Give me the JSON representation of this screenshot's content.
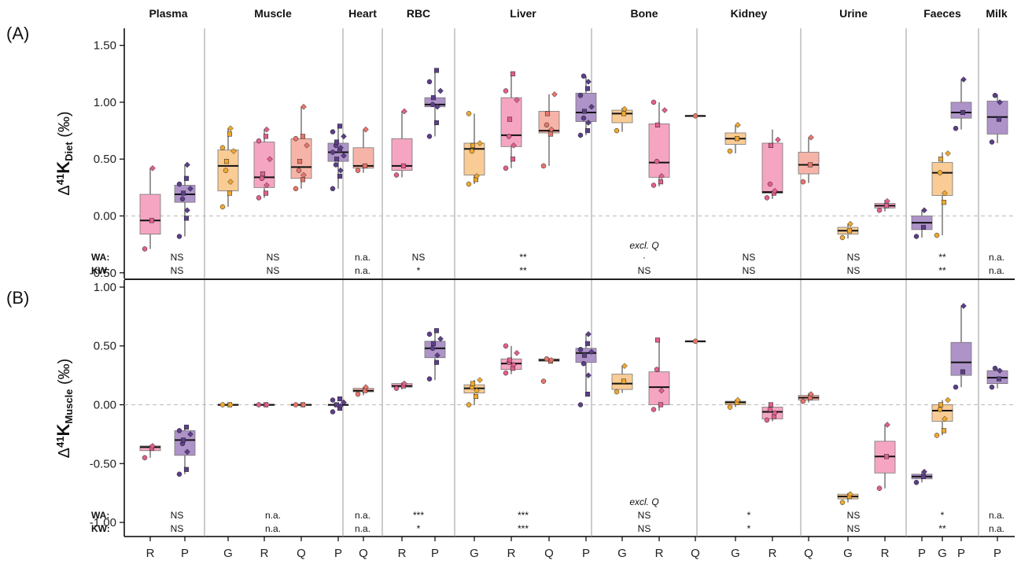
{
  "colors": {
    "G": "#f9cc95",
    "R": "#f5a5c2",
    "Q": "#f6b4a8",
    "P": "#ae93c8",
    "G_pt": "#f0a830",
    "R_pt": "#e0608e",
    "Q_pt": "#e8766a",
    "P_pt": "#5c3f8a"
  },
  "tissues": [
    "Plasma",
    "Muscle",
    "Heart",
    "RBC",
    "Liver",
    "Bone",
    "Kidney",
    "Urine",
    "Faeces",
    "Milk"
  ],
  "x_labels": [
    "R",
    "P",
    "G",
    "R",
    "Q",
    "P",
    "Q",
    "R",
    "P",
    "G",
    "R",
    "Q",
    "P",
    "G",
    "R",
    "Q",
    "G",
    "R",
    "Q",
    "G",
    "R",
    "P",
    "G",
    "P",
    "P"
  ],
  "panels": [
    {
      "label": "(A)",
      "ylabel_prefix": "Δ",
      "ylabel_sup": "41",
      "ylabel_main": "K",
      "ylabel_sub": "Diet",
      "ylabel_unit": " (‰)",
      "ytick_labels": [
        "1.50",
        "1.00",
        "0.50",
        "0.00",
        "-0.50"
      ],
      "stat_keys": [
        "WA:",
        "KW:"
      ],
      "wa": [
        "NS",
        "NS",
        "n.a.",
        "NS",
        "**",
        "·",
        "NS",
        "NS",
        "**",
        "n.a."
      ],
      "kw": [
        "NS",
        "NS",
        "n.a.",
        "*",
        "**",
        "NS",
        "NS",
        "NS",
        "**",
        "n.a."
      ],
      "note": "excl. Q"
    },
    {
      "label": "(B)",
      "ylabel_prefix": "Δ",
      "ylabel_sup": "41",
      "ylabel_main": "K",
      "ylabel_sub": "Muscle",
      "ylabel_unit": " (‰)",
      "ytick_labels": [
        "1.00",
        "0.50",
        "0.00",
        "-0.50",
        "-1.00"
      ],
      "stat_keys": [
        "WA:",
        "KW:"
      ],
      "wa": [
        "NS",
        "n.a.",
        "n.a.",
        "***",
        "***",
        "NS",
        "*",
        "NS",
        "*",
        "n.a."
      ],
      "kw": [
        "NS",
        "n.a.",
        "n.a.",
        "*",
        "***",
        "NS",
        "*",
        "NS",
        "**",
        "n.a."
      ],
      "note": "excl. Q"
    }
  ],
  "chart_data": [
    {
      "type": "box",
      "title": "(A)",
      "ylabel": "Δ41K Diet (‰)",
      "ylim": [
        -0.55,
        1.65
      ],
      "groups": [
        {
          "tissue": "Plasma",
          "diet": "R",
          "q1": -0.16,
          "median": -0.04,
          "q3": 0.19,
          "wlo": -0.29,
          "whi": 0.42,
          "points": [
            -0.29,
            -0.04,
            0.42
          ]
        },
        {
          "tissue": "Plasma",
          "diet": "P",
          "q1": 0.12,
          "median": 0.19,
          "q3": 0.27,
          "wlo": -0.18,
          "whi": 0.45,
          "points": [
            -0.18,
            -0.02,
            0.05,
            0.15,
            0.2,
            0.24,
            0.28,
            0.33,
            0.45
          ]
        },
        {
          "tissue": "Muscle",
          "diet": "G",
          "q1": 0.22,
          "median": 0.44,
          "q3": 0.58,
          "wlo": 0.08,
          "whi": 0.77,
          "points": [
            0.08,
            0.2,
            0.3,
            0.4,
            0.48,
            0.57,
            0.6,
            0.72,
            0.77
          ]
        },
        {
          "tissue": "Muscle",
          "diet": "R",
          "q1": 0.25,
          "median": 0.34,
          "q3": 0.65,
          "wlo": 0.16,
          "whi": 0.76,
          "points": [
            0.16,
            0.2,
            0.27,
            0.33,
            0.37,
            0.5,
            0.66,
            0.7,
            0.76
          ]
        },
        {
          "tissue": "Muscle",
          "diet": "Q",
          "q1": 0.33,
          "median": 0.43,
          "q3": 0.68,
          "wlo": 0.24,
          "whi": 0.96,
          "points": [
            0.24,
            0.32,
            0.36,
            0.4,
            0.48,
            0.62,
            0.68,
            0.7,
            0.96
          ]
        },
        {
          "tissue": "Muscle",
          "diet": "P",
          "q1": 0.48,
          "median": 0.56,
          "q3": 0.64,
          "wlo": 0.24,
          "whi": 0.79,
          "points": [
            0.24,
            0.35,
            0.4,
            0.45,
            0.5,
            0.53,
            0.56,
            0.58,
            0.6,
            0.62,
            0.65,
            0.7,
            0.74,
            0.79
          ]
        },
        {
          "tissue": "Heart",
          "diet": "Q",
          "q1": 0.42,
          "median": 0.44,
          "q3": 0.6,
          "wlo": 0.38,
          "whi": 0.76,
          "points": [
            0.4,
            0.44,
            0.76
          ]
        },
        {
          "tissue": "RBC",
          "diet": "R",
          "q1": 0.4,
          "median": 0.44,
          "q3": 0.68,
          "wlo": 0.34,
          "whi": 0.92,
          "points": [
            0.36,
            0.44,
            0.92
          ]
        },
        {
          "tissue": "RBC",
          "diet": "P",
          "q1": 0.96,
          "median": 0.98,
          "q3": 1.04,
          "wlo": 0.7,
          "whi": 1.28,
          "points": [
            0.7,
            0.82,
            0.96,
            0.98,
            1.04,
            1.1,
            1.18,
            1.28
          ]
        },
        {
          "tissue": "Liver",
          "diet": "G",
          "q1": 0.36,
          "median": 0.59,
          "q3": 0.64,
          "wlo": 0.28,
          "whi": 0.9,
          "points": [
            0.28,
            0.32,
            0.35,
            0.57,
            0.62,
            0.64,
            0.9
          ]
        },
        {
          "tissue": "Liver",
          "diet": "R",
          "q1": 0.61,
          "median": 0.71,
          "q3": 1.04,
          "wlo": 0.42,
          "whi": 1.25,
          "points": [
            0.42,
            0.5,
            0.62,
            0.7,
            0.85,
            1.02,
            1.1,
            1.25
          ]
        },
        {
          "tissue": "Liver",
          "diet": "Q",
          "q1": 0.73,
          "median": 0.75,
          "q3": 0.92,
          "wlo": 0.44,
          "whi": 1.07,
          "points": [
            0.44,
            0.72,
            0.76,
            0.8,
            0.9,
            1.07
          ]
        },
        {
          "tissue": "Liver",
          "diet": "P",
          "q1": 0.83,
          "median": 0.91,
          "q3": 1.08,
          "wlo": 0.71,
          "whi": 1.23,
          "points": [
            0.71,
            0.75,
            0.82,
            0.86,
            0.92,
            0.96,
            1.06,
            1.12,
            1.18,
            1.23
          ]
        },
        {
          "tissue": "Bone",
          "diet": "G",
          "q1": 0.82,
          "median": 0.9,
          "q3": 0.93,
          "wlo": 0.74,
          "whi": 0.95,
          "points": [
            0.75,
            0.9,
            0.94
          ]
        },
        {
          "tissue": "Bone",
          "diet": "R",
          "q1": 0.34,
          "median": 0.47,
          "q3": 0.81,
          "wlo": 0.26,
          "whi": 1.0,
          "points": [
            0.27,
            0.3,
            0.35,
            0.48,
            0.8,
            0.93,
            1.0
          ]
        },
        {
          "tissue": "Bone",
          "diet": "Q",
          "q1": 0.88,
          "median": 0.88,
          "q3": 0.88,
          "wlo": 0.88,
          "whi": 0.88,
          "points": [
            0.88
          ]
        },
        {
          "tissue": "Kidney",
          "diet": "G",
          "q1": 0.63,
          "median": 0.68,
          "q3": 0.73,
          "wlo": 0.55,
          "whi": 0.8,
          "points": [
            0.57,
            0.68,
            0.8
          ]
        },
        {
          "tissue": "Kidney",
          "diet": "R",
          "q1": 0.2,
          "median": 0.21,
          "q3": 0.64,
          "wlo": 0.15,
          "whi": 0.76,
          "points": [
            0.16,
            0.2,
            0.22,
            0.28,
            0.62,
            0.67
          ]
        },
        {
          "tissue": "Kidney",
          "diet": "Q",
          "q1": 0.37,
          "median": 0.45,
          "q3": 0.56,
          "wlo": 0.29,
          "whi": 0.69,
          "points": [
            0.3,
            0.45,
            0.69
          ]
        },
        {
          "tissue": "Urine",
          "diet": "G",
          "q1": -0.16,
          "median": -0.13,
          "q3": -0.1,
          "wlo": -0.2,
          "whi": -0.07,
          "points": [
            -0.19,
            -0.13,
            -0.07
          ]
        },
        {
          "tissue": "Urine",
          "diet": "R",
          "q1": 0.07,
          "median": 0.09,
          "q3": 0.11,
          "wlo": 0.04,
          "whi": 0.14,
          "points": [
            0.05,
            0.09,
            0.13
          ]
        },
        {
          "tissue": "Urine",
          "diet": "P",
          "q1": -0.12,
          "median": -0.06,
          "q3": 0.0,
          "wlo": -0.19,
          "whi": 0.05,
          "points": [
            -0.18,
            -0.1,
            0.05
          ]
        },
        {
          "tissue": "Faeces",
          "diet": "G",
          "q1": 0.18,
          "median": 0.38,
          "q3": 0.47,
          "wlo": -0.17,
          "whi": 0.56,
          "points": [
            -0.17,
            0.12,
            0.2,
            0.38,
            0.5,
            0.55
          ]
        },
        {
          "tissue": "Faeces",
          "diet": "P",
          "q1": 0.86,
          "median": 0.91,
          "q3": 1.0,
          "wlo": 0.76,
          "whi": 1.2,
          "points": [
            0.77,
            0.91,
            1.2
          ]
        },
        {
          "tissue": "Milk",
          "diet": "P",
          "q1": 0.72,
          "median": 0.87,
          "q3": 1.01,
          "wlo": 0.64,
          "whi": 1.07,
          "points": [
            0.65,
            0.85,
            1.0,
            1.06
          ]
        }
      ]
    },
    {
      "type": "box",
      "title": "(B)",
      "ylabel": "Δ41K Muscle (‰)",
      "ylim": [
        -1.12,
        1.06
      ],
      "groups": [
        {
          "tissue": "Plasma",
          "diet": "R",
          "q1": -0.39,
          "median": -0.36,
          "q3": -0.35,
          "wlo": -0.45,
          "whi": -0.34,
          "points": [
            -0.45,
            -0.37,
            -0.35
          ]
        },
        {
          "tissue": "Plasma",
          "diet": "P",
          "q1": -0.43,
          "median": -0.3,
          "q3": -0.22,
          "wlo": -0.59,
          "whi": -0.18,
          "points": [
            -0.59,
            -0.55,
            -0.4,
            -0.33,
            -0.3,
            -0.25,
            -0.22,
            -0.19
          ]
        },
        {
          "tissue": "Muscle",
          "diet": "G",
          "q1": 0.0,
          "median": 0.0,
          "q3": 0.0,
          "wlo": 0.0,
          "whi": 0.0,
          "points": [
            0.0,
            0.0,
            0.0
          ]
        },
        {
          "tissue": "Muscle",
          "diet": "R",
          "q1": 0.0,
          "median": 0.0,
          "q3": 0.0,
          "wlo": 0.0,
          "whi": 0.0,
          "points": [
            0.0,
            0.0,
            0.0
          ]
        },
        {
          "tissue": "Muscle",
          "diet": "Q",
          "q1": 0.0,
          "median": 0.0,
          "q3": 0.0,
          "wlo": 0.0,
          "whi": 0.0,
          "points": [
            0.0,
            0.0,
            0.0
          ]
        },
        {
          "tissue": "Muscle",
          "diet": "P",
          "q1": 0.0,
          "median": 0.0,
          "q3": 0.0,
          "wlo": 0.0,
          "whi": 0.0,
          "points": [
            -0.06,
            -0.03,
            -0.01,
            0.0,
            0.0,
            0.02,
            0.04,
            0.05
          ]
        },
        {
          "tissue": "Heart",
          "diet": "Q",
          "q1": 0.11,
          "median": 0.12,
          "q3": 0.14,
          "wlo": 0.08,
          "whi": 0.15,
          "points": [
            0.09,
            0.12,
            0.15
          ]
        },
        {
          "tissue": "RBC",
          "diet": "R",
          "q1": 0.15,
          "median": 0.16,
          "q3": 0.18,
          "wlo": 0.13,
          "whi": 0.19,
          "points": [
            0.14,
            0.16,
            0.18
          ]
        },
        {
          "tissue": "RBC",
          "diet": "P",
          "q1": 0.4,
          "median": 0.48,
          "q3": 0.54,
          "wlo": 0.21,
          "whi": 0.63,
          "points": [
            0.22,
            0.36,
            0.42,
            0.48,
            0.52,
            0.56,
            0.6,
            0.63
          ]
        },
        {
          "tissue": "Liver",
          "diet": "G",
          "q1": 0.1,
          "median": 0.14,
          "q3": 0.17,
          "wlo": 0.0,
          "whi": 0.21,
          "points": [
            0.0,
            0.07,
            0.12,
            0.15,
            0.18,
            0.21
          ]
        },
        {
          "tissue": "Liver",
          "diet": "R",
          "q1": 0.3,
          "median": 0.35,
          "q3": 0.39,
          "wlo": 0.26,
          "whi": 0.5,
          "points": [
            0.27,
            0.31,
            0.34,
            0.36,
            0.38,
            0.44,
            0.5
          ]
        },
        {
          "tissue": "Liver",
          "diet": "Q",
          "q1": 0.37,
          "median": 0.38,
          "q3": 0.39,
          "wlo": 0.35,
          "whi": 0.4,
          "points": [
            0.2,
            0.37,
            0.38,
            0.39
          ]
        },
        {
          "tissue": "Liver",
          "diet": "P",
          "q1": 0.36,
          "median": 0.44,
          "q3": 0.48,
          "wlo": 0.09,
          "whi": 0.6,
          "points": [
            0.0,
            0.09,
            0.25,
            0.35,
            0.42,
            0.45,
            0.47,
            0.52,
            0.6
          ]
        },
        {
          "tissue": "Bone",
          "diet": "G",
          "q1": 0.13,
          "median": 0.18,
          "q3": 0.26,
          "wlo": 0.1,
          "whi": 0.33,
          "points": [
            0.11,
            0.2,
            0.33
          ]
        },
        {
          "tissue": "Bone",
          "diet": "R",
          "q1": 0.0,
          "median": 0.15,
          "q3": 0.28,
          "wlo": -0.05,
          "whi": 0.55,
          "points": [
            -0.04,
            0.0,
            0.12,
            0.3,
            0.55
          ]
        },
        {
          "tissue": "Bone",
          "diet": "Q",
          "q1": 0.54,
          "median": 0.54,
          "q3": 0.54,
          "wlo": 0.54,
          "whi": 0.54,
          "points": [
            0.54
          ]
        },
        {
          "tissue": "Kidney",
          "diet": "G",
          "q1": 0.0,
          "median": 0.02,
          "q3": 0.03,
          "wlo": -0.02,
          "whi": 0.04,
          "points": [
            -0.02,
            0.02,
            0.04
          ]
        },
        {
          "tissue": "Kidney",
          "diet": "R",
          "q1": -0.12,
          "median": -0.06,
          "q3": -0.02,
          "wlo": -0.14,
          "whi": 0.0,
          "points": [
            -0.13,
            -0.1,
            -0.07,
            -0.04,
            0.0
          ]
        },
        {
          "tissue": "Kidney",
          "diet": "Q",
          "q1": 0.04,
          "median": 0.06,
          "q3": 0.08,
          "wlo": 0.02,
          "whi": 0.1,
          "points": [
            0.03,
            0.06,
            0.09
          ]
        },
        {
          "tissue": "Urine",
          "diet": "G",
          "q1": -0.8,
          "median": -0.78,
          "q3": -0.76,
          "wlo": -0.83,
          "whi": -0.75,
          "points": [
            -0.83,
            -0.78,
            -0.76
          ]
        },
        {
          "tissue": "Urine",
          "diet": "R",
          "q1": -0.58,
          "median": -0.44,
          "q3": -0.31,
          "wlo": -0.71,
          "whi": -0.17,
          "points": [
            -0.71,
            -0.44,
            -0.17
          ]
        },
        {
          "tissue": "Urine",
          "diet": "P",
          "q1": -0.63,
          "median": -0.61,
          "q3": -0.59,
          "wlo": -0.66,
          "whi": -0.57,
          "points": [
            -0.66,
            -0.61,
            -0.57
          ]
        },
        {
          "tissue": "Faeces",
          "diet": "G",
          "q1": -0.14,
          "median": -0.05,
          "q3": 0.0,
          "wlo": -0.26,
          "whi": 0.04,
          "points": [
            -0.26,
            -0.22,
            -0.12,
            -0.04,
            0.0,
            0.04
          ]
        },
        {
          "tissue": "Faeces",
          "diet": "P",
          "q1": 0.25,
          "median": 0.36,
          "q3": 0.53,
          "wlo": 0.15,
          "whi": 0.84,
          "points": [
            0.15,
            0.28,
            0.84
          ]
        },
        {
          "tissue": "Milk",
          "diet": "P",
          "q1": 0.18,
          "median": 0.23,
          "q3": 0.29,
          "wlo": 0.14,
          "whi": 0.31,
          "points": [
            0.15,
            0.22,
            0.29,
            0.31
          ]
        }
      ]
    }
  ]
}
